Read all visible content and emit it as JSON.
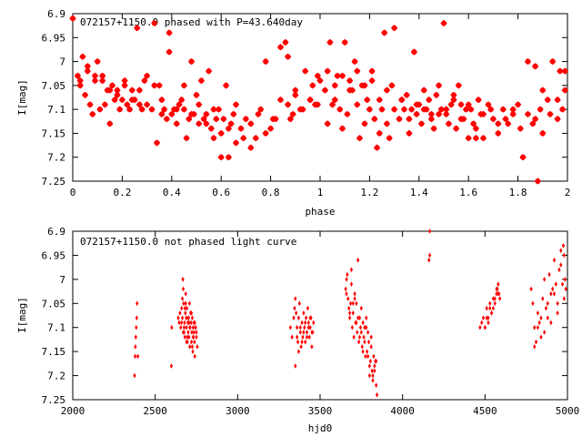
{
  "chart_data": [
    {
      "type": "scatter",
      "title": "072157+1150.0 phased with P=43.640day",
      "xlabel": "phase",
      "ylabel": "I[mag]",
      "xlim": [
        0,
        2
      ],
      "ylim": [
        7.25,
        6.9
      ],
      "y_inverted": true,
      "xticks": [
        0,
        0.2,
        0.4,
        0.6,
        0.8,
        1,
        1.2,
        1.4,
        1.6,
        1.8,
        2
      ],
      "xtick_labels": [
        "0",
        "0.2",
        "0.4",
        "0.6",
        "0.8",
        "1",
        "1.2",
        "1.4",
        "1.6",
        "1.8",
        "2"
      ],
      "yticks": [
        6.9,
        6.95,
        7,
        7.05,
        7.1,
        7.15,
        7.2,
        7.25
      ],
      "ytick_labels": [
        "6.9",
        "6.95",
        "7",
        "7.05",
        "7.1",
        "7.15",
        "7.2",
        "7.25"
      ],
      "marker": "star",
      "color": "#ff0000",
      "series": [
        {
          "x": [
            0.0,
            0.02,
            0.03,
            0.04,
            0.05,
            0.06,
            0.07,
            0.08,
            0.09,
            0.1,
            0.11,
            0.12,
            0.13,
            0.14,
            0.15,
            0.16,
            0.17,
            0.18,
            0.19,
            0.2,
            0.21,
            0.22,
            0.23,
            0.24,
            0.25,
            0.26,
            0.27,
            0.28,
            0.29,
            0.3,
            0.32,
            0.33,
            0.34,
            0.35,
            0.36,
            0.37,
            0.38,
            0.39,
            0.4,
            0.41,
            0.42,
            0.43,
            0.44,
            0.45,
            0.46,
            0.47,
            0.48,
            0.49,
            0.5,
            0.51,
            0.52,
            0.53,
            0.54,
            0.55,
            0.56,
            0.57,
            0.58,
            0.59,
            0.6,
            0.61,
            0.62,
            0.63,
            0.64,
            0.65,
            0.66,
            0.68,
            0.7,
            0.72,
            0.74,
            0.76,
            0.78,
            0.8,
            0.82,
            0.84,
            0.86,
            0.87,
            0.88,
            0.89,
            0.9,
            0.92,
            0.94,
            0.96,
            0.97,
            0.98,
            0.99,
            0.03,
            0.06,
            0.09,
            0.12,
            0.15,
            0.18,
            0.21,
            0.24,
            0.27,
            0.3,
            0.33,
            0.36,
            0.39,
            0.42,
            0.45,
            0.48,
            0.51,
            0.54,
            0.57,
            0.6,
            0.63,
            0.66,
            0.69,
            0.72,
            0.75,
            0.78,
            0.81,
            0.84,
            0.87,
            0.9,
            0.93,
            0.96,
            0.99
          ],
          "y": [
            6.91,
            7.03,
            7.05,
            6.99,
            7.07,
            7.02,
            7.09,
            7.11,
            7.04,
            7.0,
            7.1,
            7.03,
            7.09,
            7.06,
            7.13,
            7.05,
            7.08,
            7.06,
            7.1,
            7.08,
            7.04,
            7.09,
            7.1,
            7.06,
            7.08,
            6.93,
            7.09,
            7.1,
            7.04,
            7.03,
            7.1,
            6.92,
            7.17,
            7.05,
            7.08,
            7.1,
            7.12,
            6.94,
            7.11,
            7.1,
            7.13,
            7.09,
            7.08,
            7.1,
            7.16,
            7.12,
            7.0,
            7.11,
            7.07,
            7.13,
            7.04,
            7.12,
            7.11,
            7.02,
            7.14,
            7.16,
            7.12,
            7.1,
            7.2,
            7.12,
            7.05,
            7.2,
            7.13,
            7.11,
            7.17,
            7.14,
            7.12,
            7.18,
            7.16,
            7.1,
            7.0,
            7.14,
            7.12,
            7.08,
            6.96,
            7.09,
            7.12,
            7.11,
            7.07,
            7.1,
            7.02,
            7.08,
            7.05,
            7.09,
            7.03,
            7.04,
            7.01,
            7.03,
            7.04,
            7.06,
            7.07,
            7.05,
            7.08,
            7.06,
            7.09,
            7.05,
            7.11,
            6.98,
            7.1,
            7.05,
            7.11,
            7.09,
            7.13,
            7.1,
            7.15,
            7.14,
            7.09,
            7.16,
            7.13,
            7.11,
            7.15,
            7.12,
            6.97,
            6.99,
            7.06,
            7.1,
            7.08,
            7.09
          ]
        },
        {
          "x": [
            1.0,
            1.02,
            1.03,
            1.04,
            1.05,
            1.06,
            1.07,
            1.08,
            1.09,
            1.1,
            1.11,
            1.12,
            1.13,
            1.14,
            1.15,
            1.16,
            1.17,
            1.18,
            1.19,
            1.2,
            1.21,
            1.22,
            1.23,
            1.24,
            1.25,
            1.26,
            1.27,
            1.28,
            1.29,
            1.3,
            1.32,
            1.33,
            1.34,
            1.35,
            1.36,
            1.37,
            1.38,
            1.39,
            1.4,
            1.41,
            1.42,
            1.43,
            1.44,
            1.45,
            1.46,
            1.47,
            1.48,
            1.49,
            1.5,
            1.51,
            1.52,
            1.53,
            1.54,
            1.55,
            1.56,
            1.57,
            1.58,
            1.59,
            1.6,
            1.61,
            1.62,
            1.63,
            1.64,
            1.65,
            1.66,
            1.68,
            1.7,
            1.72,
            1.74,
            1.76,
            1.78,
            1.8,
            1.82,
            1.84,
            1.86,
            1.87,
            1.88,
            1.89,
            1.9,
            1.92,
            1.94,
            1.96,
            1.97,
            1.98,
            1.99,
            1.03,
            1.06,
            1.09,
            1.12,
            1.15,
            1.18,
            1.21,
            1.24,
            1.27,
            1.3,
            1.33,
            1.36,
            1.39,
            1.42,
            1.45,
            1.48,
            1.51,
            1.54,
            1.57,
            1.6,
            1.63,
            1.66,
            1.69,
            1.72,
            1.75,
            1.78,
            1.81,
            1.84,
            1.87,
            1.9,
            1.93,
            1.96,
            1.99
          ],
          "y": [
            7.04,
            7.06,
            7.13,
            6.96,
            7.09,
            7.05,
            7.03,
            7.1,
            7.14,
            6.96,
            7.11,
            7.04,
            7.06,
            7.0,
            7.09,
            7.16,
            7.05,
            7.13,
            7.08,
            7.1,
            7.02,
            7.12,
            7.18,
            7.15,
            7.1,
            6.94,
            7.13,
            7.16,
            7.05,
            6.93,
            7.12,
            7.08,
            7.1,
            7.07,
            7.15,
            7.1,
            6.98,
            7.11,
            7.09,
            7.13,
            7.06,
            7.1,
            7.08,
            7.11,
            7.14,
            7.07,
            7.05,
            7.1,
            6.92,
            7.11,
            7.13,
            7.09,
            7.07,
            7.14,
            7.05,
            7.09,
            7.12,
            7.1,
            7.16,
            7.1,
            7.13,
            7.16,
            7.08,
            7.11,
            7.16,
            7.09,
            7.12,
            7.15,
            7.1,
            7.13,
            7.11,
            7.09,
            7.2,
            7.11,
            7.13,
            7.12,
            7.25,
            7.1,
            7.15,
            7.08,
            7.0,
            7.12,
            7.02,
            7.1,
            7.06,
            7.02,
            7.08,
            7.03,
            7.06,
            7.02,
            7.05,
            7.04,
            7.08,
            7.06,
            7.1,
            7.08,
            7.12,
            7.09,
            7.1,
            7.12,
            7.11,
            7.1,
            7.08,
            7.12,
            7.09,
            7.14,
            7.11,
            7.1,
            7.13,
            7.12,
            7.1,
            7.14,
            7.0,
            7.01,
            7.06,
            7.11,
            7.08,
            7.02
          ]
        }
      ]
    },
    {
      "type": "scatter",
      "title": "072157+1150.0 not phased light curve",
      "xlabel": "hjd0",
      "ylabel": "I[mag]",
      "xlim": [
        2000,
        5000
      ],
      "ylim": [
        7.25,
        6.9
      ],
      "y_inverted": true,
      "xticks": [
        2000,
        2500,
        3000,
        3500,
        4000,
        4500,
        5000
      ],
      "xtick_labels": [
        "2000",
        "2500",
        "3000",
        "3500",
        "4000",
        "4500",
        "5000"
      ],
      "yticks": [
        6.9,
        6.95,
        7,
        7.05,
        7.1,
        7.15,
        7.2,
        7.25
      ],
      "ytick_labels": [
        "6.9",
        "6.95",
        "7",
        "7.05",
        "7.1",
        "7.15",
        "7.2",
        "7.25"
      ],
      "marker": "diamond",
      "color": "#ff0000",
      "series": [
        {
          "x": [
            2375,
            2378,
            2380,
            2382,
            2385,
            2388,
            2390,
            2395,
            2598,
            2600,
            2640,
            2645,
            2650,
            2655,
            2660,
            2665,
            2668,
            2670,
            2672,
            2675,
            2678,
            2680,
            2683,
            2685,
            2688,
            2690,
            2692,
            2695,
            2698,
            2700,
            2703,
            2705,
            2708,
            2710,
            2712,
            2715,
            2718,
            2720,
            2722,
            2725,
            2728,
            2730,
            2732,
            2735,
            2738,
            2740,
            2745,
            2750,
            2755,
            2660,
            2670,
            2680,
            2690,
            2700,
            2710,
            2720,
            2730,
            2740,
            2750,
            2665,
            2675,
            2685,
            2695,
            2705,
            2715,
            2725,
            2735,
            2745,
            3320,
            3330,
            3340,
            3345,
            3350,
            3355,
            3360,
            3365,
            3370,
            3375,
            3380,
            3385,
            3390,
            3395,
            3400,
            3405,
            3410,
            3415,
            3420,
            3425,
            3430,
            3435,
            3440,
            3445,
            3450,
            3455,
            3460,
            3350,
            3360,
            3370,
            3380,
            3390,
            3400,
            3410,
            3420,
            3430,
            3440,
            3450
          ],
          "y": [
            7.2,
            7.16,
            7.14,
            7.12,
            7.1,
            7.08,
            7.05,
            7.16,
            7.18,
            7.1,
            7.08,
            7.09,
            7.07,
            7.1,
            7.06,
            7.04,
            7.0,
            7.02,
            7.05,
            7.11,
            7.09,
            7.12,
            7.07,
            7.03,
            7.08,
            7.1,
            7.06,
            7.13,
            7.09,
            7.11,
            7.08,
            7.12,
            7.05,
            7.14,
            7.1,
            7.07,
            7.09,
            7.13,
            7.11,
            7.08,
            7.15,
            7.1,
            7.12,
            7.09,
            7.13,
            7.16,
            7.1,
            7.12,
            7.14,
            7.09,
            7.11,
            7.06,
            7.13,
            7.08,
            7.1,
            7.07,
            7.12,
            7.09,
            7.11,
            7.08,
            7.1,
            7.05,
            7.12,
            7.09,
            7.07,
            7.14,
            7.11,
            7.1,
            7.1,
            7.12,
            7.08,
            7.06,
            7.04,
            7.07,
            7.1,
            7.13,
            7.08,
            7.05,
            7.11,
            7.14,
            7.09,
            7.12,
            7.07,
            7.1,
            7.13,
            7.08,
            7.11,
            7.06,
            7.09,
            7.12,
            7.1,
            7.08,
            7.14,
            7.11,
            7.09,
            7.18,
            7.12,
            7.15,
            7.1,
            7.13,
            7.11,
            7.09,
            7.12,
            7.1,
            7.08,
            7.11
          ]
        },
        {
          "x": [
            3655,
            3660,
            3665,
            3670,
            3675,
            3680,
            3685,
            3690,
            3695,
            3700,
            3705,
            3710,
            3715,
            3720,
            3725,
            3730,
            3735,
            3740,
            3745,
            3750,
            3755,
            3760,
            3765,
            3770,
            3775,
            3780,
            3785,
            3790,
            3795,
            3800,
            3805,
            3810,
            3815,
            3820,
            3825,
            3830,
            3835,
            3840,
            3845,
            3660,
            3680,
            3700,
            3720,
            3740,
            3760,
            3780,
            3800,
            3820,
            3840,
            3690,
            3710,
            3730,
            3750,
            3770,
            3790,
            3810,
            3830,
            4160,
            4165,
            4165,
            4470,
            4480,
            4490,
            4500,
            4510,
            4520,
            4530,
            4540,
            4550,
            4560,
            4570,
            4575,
            4580,
            4585,
            4590,
            4500,
            4520,
            4540,
            4560,
            4580,
            4510,
            4530,
            4550,
            4570,
            4780,
            4790,
            4800,
            4810,
            4820,
            4830,
            4840,
            4850,
            4860,
            4870,
            4880,
            4890,
            4900,
            4910,
            4920,
            4930,
            4940,
            4950,
            4960,
            4970,
            4975,
            4980,
            4985,
            4990,
            4800,
            4820,
            4840,
            4860,
            4880,
            4900,
            4920,
            4940,
            4960,
            4980
          ],
          "y": [
            7.02,
            7.0,
            6.99,
            7.04,
            7.06,
            7.08,
            7.05,
            6.98,
            7.1,
            7.07,
            7.12,
            7.03,
            7.09,
            7.05,
            7.11,
            6.96,
            7.13,
            7.08,
            7.1,
            7.06,
            7.14,
            7.09,
            7.12,
            7.1,
            7.16,
            7.08,
            7.15,
            7.11,
            7.13,
            7.2,
            7.17,
            7.14,
            7.19,
            7.21,
            7.16,
            7.18,
            7.17,
            7.22,
            7.24,
            7.03,
            7.07,
            7.05,
            7.09,
            7.12,
            7.15,
            7.1,
            7.18,
            7.2,
            7.17,
            7.01,
            7.04,
            7.08,
            7.11,
            7.13,
            7.16,
            7.12,
            7.19,
            6.96,
            6.95,
            6.9,
            7.1,
            7.09,
            7.08,
            7.1,
            7.06,
            7.08,
            7.05,
            7.07,
            7.06,
            7.04,
            7.03,
            7.02,
            7.01,
            7.03,
            7.04,
            7.1,
            7.09,
            7.07,
            7.05,
            7.03,
            7.08,
            7.06,
            7.04,
            7.02,
            7.02,
            7.05,
            7.1,
            7.13,
            7.07,
            7.09,
            7.12,
            7.04,
            7.0,
            7.06,
            7.08,
            6.99,
            7.03,
            7.02,
            6.96,
            7.01,
            7.05,
            6.98,
            6.94,
            7.01,
            6.93,
            6.95,
            7.0,
            7.02,
            7.14,
            7.1,
            7.08,
            7.11,
            7.05,
            7.09,
            7.03,
            7.07,
            6.97,
            7.04
          ]
        }
      ]
    }
  ]
}
